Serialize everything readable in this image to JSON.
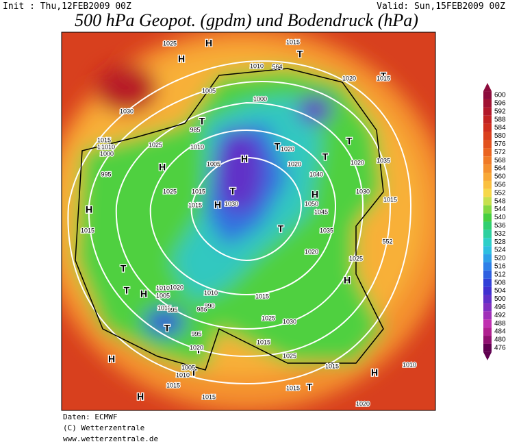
{
  "header": {
    "init": "Init : Thu,12FEB2009 00Z",
    "valid": "Valid: Sun,15FEB2009 00Z",
    "title": "500 hPa Geopot. (gpdm) und Bodendruck (hPa)"
  },
  "map": {
    "labels": [
      "1025",
      "H",
      "H",
      "1030",
      "T",
      "1010",
      "564",
      "T",
      "1015",
      "1020",
      "1015",
      "1005",
      "1000",
      "985",
      "1010",
      "1015",
      "T",
      "T",
      "1015",
      "1035",
      "1020",
      "1010",
      "1000",
      "995",
      "1025",
      "H",
      "1005",
      "H",
      "1025",
      "1015",
      "1020",
      "T",
      "1015",
      "T",
      "H",
      "1030",
      "T",
      "H",
      "1015",
      "1040",
      "1050",
      "1045",
      "1035",
      "H",
      "T",
      "1030",
      "1015",
      "1020",
      "1025",
      "1020",
      "552",
      "T",
      "1010",
      "1005",
      "T",
      "H",
      "1015",
      "1010",
      "1030",
      "1015",
      "1025",
      "1015",
      "T",
      "1020",
      "995",
      "985",
      "990",
      "T",
      "995",
      "1020",
      "T",
      "H",
      "1015",
      "1005",
      "1010",
      "H",
      "H",
      "1015",
      "1025",
      "1030",
      "T",
      "1015",
      "1010",
      "H",
      "1015",
      "1020"
    ]
  },
  "colorbar": {
    "labels": [
      600,
      596,
      592,
      588,
      584,
      580,
      576,
      572,
      568,
      564,
      560,
      556,
      552,
      548,
      544,
      540,
      536,
      532,
      528,
      524,
      520,
      516,
      512,
      508,
      504,
      500,
      496,
      492,
      488,
      484,
      480,
      476
    ],
    "colors": [
      "#8c0c3c",
      "#a01232",
      "#b2182a",
      "#c22222",
      "#d02e1e",
      "#da401e",
      "#e2521e",
      "#ea6420",
      "#f07a26",
      "#f4902e",
      "#f8a836",
      "#fac040",
      "#f6d84a",
      "#c6e04e",
      "#84d842",
      "#46cf40",
      "#30cf70",
      "#2ed0a0",
      "#2ecfc8",
      "#2ebfe0",
      "#2ea0e8",
      "#2e80e8",
      "#2e60e0",
      "#3040d8",
      "#4030d0",
      "#6030c8",
      "#8030c0",
      "#a030b8",
      "#c030b0",
      "#b02090",
      "#901070",
      "#600050"
    ]
  },
  "footer": {
    "source": "Daten: ECMWF",
    "copyright": "(C) Wetterzentrale",
    "url": "www.wetterzentrale.de"
  }
}
